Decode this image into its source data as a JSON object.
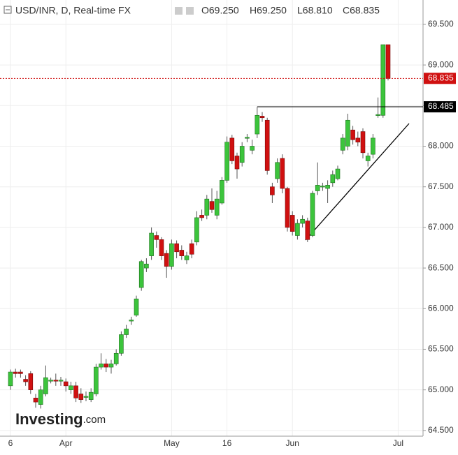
{
  "chart_data": {
    "type": "candlestick",
    "title": "USD/INR, D, Real-time FX",
    "ohlc_legend": [
      "O69.250",
      "H69.250",
      "L68.810",
      "C68.835"
    ],
    "watermark": [
      "Investing",
      ".com"
    ],
    "categories": [
      "6",
      null,
      null,
      null,
      null,
      null,
      null,
      null,
      null,
      null,
      null,
      "Apr",
      null,
      null,
      null,
      null,
      null,
      null,
      null,
      null,
      null,
      null,
      null,
      null,
      null,
      null,
      null,
      null,
      null,
      null,
      null,
      null,
      "May",
      null,
      null,
      null,
      null,
      null,
      null,
      null,
      null,
      null,
      null,
      "16",
      null,
      null,
      null,
      null,
      null,
      null,
      null,
      null,
      null,
      null,
      null,
      null,
      "Jun",
      null,
      null,
      null,
      null,
      null,
      null,
      null,
      null,
      null,
      null,
      null,
      null,
      null,
      null,
      null,
      null,
      null,
      null,
      null,
      null,
      "Jul"
    ],
    "open": [
      65.05,
      65.22,
      65.22,
      65.13,
      65.2,
      64.9,
      64.82,
      64.95,
      65.12,
      65.12,
      65.12,
      65.1,
      65.0,
      65.05,
      64.95,
      64.92,
      64.88,
      64.95,
      65.28,
      65.32,
      65.28,
      65.32,
      65.45,
      65.68,
      65.85,
      65.92,
      66.26,
      66.5,
      66.65,
      66.9,
      66.85,
      66.68,
      66.52,
      66.8,
      66.72,
      66.6,
      66.8,
      66.82,
      67.15,
      67.15,
      67.32,
      67.15,
      67.3,
      67.58,
      68.1,
      67.88,
      67.8,
      68.1,
      67.95,
      68.15,
      68.37,
      68.32,
      67.5,
      67.6,
      67.85,
      67.48,
      67.15,
      66.9,
      67.05,
      67.08,
      66.9,
      67.45,
      67.5,
      67.48,
      67.55,
      67.6,
      67.95,
      68.0,
      68.2,
      68.1,
      68.18,
      67.82,
      67.9,
      68.38,
      68.38,
      69.25,
      null,
      null
    ],
    "high": [
      65.25,
      65.26,
      65.25,
      65.18,
      65.23,
      64.95,
      65.05,
      65.3,
      65.15,
      65.2,
      65.16,
      65.14,
      65.1,
      65.1,
      65.02,
      64.98,
      65.02,
      65.32,
      65.45,
      65.38,
      65.37,
      65.5,
      65.72,
      65.8,
      65.9,
      66.16,
      66.6,
      66.62,
      67.0,
      66.95,
      66.88,
      66.72,
      66.85,
      66.84,
      66.78,
      66.7,
      66.85,
      67.2,
      67.22,
      67.4,
      67.48,
      67.45,
      67.62,
      68.12,
      68.14,
      67.92,
      68.05,
      68.15,
      68.08,
      68.48,
      68.42,
      68.35,
      67.55,
      67.85,
      67.9,
      67.5,
      67.2,
      67.1,
      67.15,
      67.12,
      67.45,
      67.8,
      67.55,
      67.58,
      67.7,
      67.76,
      68.15,
      68.4,
      68.25,
      68.18,
      68.22,
      67.92,
      68.15,
      68.6,
      69.25,
      69.25,
      null,
      null
    ],
    "low": [
      65.0,
      65.15,
      65.15,
      65.05,
      64.95,
      64.78,
      64.77,
      64.92,
      65.08,
      65.05,
      65.05,
      64.98,
      64.95,
      64.85,
      64.84,
      64.86,
      64.85,
      64.92,
      65.25,
      65.22,
      65.2,
      65.3,
      65.42,
      65.64,
      65.8,
      65.9,
      66.22,
      66.45,
      66.6,
      66.75,
      66.6,
      66.38,
      66.48,
      66.62,
      66.6,
      66.55,
      66.62,
      66.78,
      67.08,
      67.1,
      67.18,
      67.1,
      67.28,
      67.55,
      67.78,
      67.6,
      67.75,
      68.05,
      67.9,
      68.1,
      68.3,
      67.65,
      67.3,
      67.55,
      67.42,
      66.95,
      66.9,
      66.85,
      67.0,
      66.82,
      66.88,
      67.4,
      67.45,
      67.3,
      67.5,
      67.58,
      67.9,
      67.95,
      68.02,
      68.0,
      67.85,
      67.75,
      67.85,
      68.35,
      68.35,
      68.81,
      null,
      null
    ],
    "close": [
      65.22,
      65.2,
      65.2,
      65.1,
      65.0,
      64.85,
      65.0,
      65.15,
      65.12,
      65.11,
      65.12,
      65.05,
      65.05,
      64.9,
      64.88,
      64.92,
      64.97,
      65.28,
      65.32,
      65.28,
      65.32,
      65.45,
      65.68,
      65.75,
      65.86,
      66.12,
      66.58,
      66.55,
      66.93,
      66.85,
      66.65,
      66.52,
      66.8,
      66.7,
      66.65,
      66.65,
      66.67,
      67.12,
      67.12,
      67.35,
      67.22,
      67.35,
      67.58,
      68.05,
      67.82,
      67.72,
      68.0,
      68.11,
      68.0,
      68.38,
      68.35,
      67.7,
      67.4,
      67.8,
      67.48,
      67.0,
      66.95,
      67.05,
      67.1,
      66.85,
      67.42,
      67.52,
      67.51,
      67.52,
      67.65,
      67.72,
      68.1,
      68.32,
      68.08,
      68.05,
      67.92,
      67.88,
      68.1,
      68.39,
      69.25,
      68.835,
      null,
      null
    ],
    "up_color": "#3cc43c",
    "down_color": "#d01010",
    "ylim": [
      64.43,
      69.8
    ],
    "yticks": [
      {
        "value": 64.5,
        "label": "64.500"
      },
      {
        "value": 65.0,
        "label": "65.000"
      },
      {
        "value": 65.5,
        "label": "65.500"
      },
      {
        "value": 66.0,
        "label": "66.000"
      },
      {
        "value": 66.5,
        "label": "66.500"
      },
      {
        "value": 67.0,
        "label": "67.000"
      },
      {
        "value": 67.5,
        "label": "67.500"
      },
      {
        "value": 68.0,
        "label": "68.000"
      },
      {
        "value": 68.5,
        "label": "68.500"
      },
      {
        "value": 69.0,
        "label": "69.000"
      },
      {
        "value": 69.5,
        "label": "69.500"
      }
    ],
    "price_lines": [
      {
        "value": 68.835,
        "label": "68.835",
        "color": "#d01010",
        "dashed": true
      },
      {
        "value": 68.485,
        "label": "68.485",
        "color": "#000000",
        "dashed": false
      }
    ],
    "grid": true
  }
}
